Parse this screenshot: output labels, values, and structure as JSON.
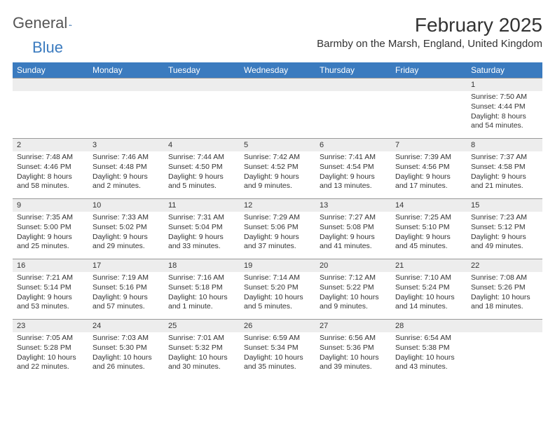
{
  "brand": {
    "name1": "General",
    "name2": "Blue"
  },
  "title": "February 2025",
  "location": "Barmby on the Marsh, England, United Kingdom",
  "colors": {
    "header_bg": "#3b7bbf",
    "header_fg": "#ffffff",
    "daynum_bg": "#ededed",
    "border": "#999999",
    "text": "#333333",
    "page_bg": "#ffffff"
  },
  "typography": {
    "title_fontsize": 28,
    "location_fontsize": 15,
    "th_fontsize": 12,
    "cell_fontsize": 10.5
  },
  "columns": [
    "Sunday",
    "Monday",
    "Tuesday",
    "Wednesday",
    "Thursday",
    "Friday",
    "Saturday"
  ],
  "weeks": [
    [
      null,
      null,
      null,
      null,
      null,
      null,
      {
        "n": "1",
        "sr": "Sunrise: 7:50 AM",
        "ss": "Sunset: 4:44 PM",
        "dl": "Daylight: 8 hours and 54 minutes."
      }
    ],
    [
      {
        "n": "2",
        "sr": "Sunrise: 7:48 AM",
        "ss": "Sunset: 4:46 PM",
        "dl": "Daylight: 8 hours and 58 minutes."
      },
      {
        "n": "3",
        "sr": "Sunrise: 7:46 AM",
        "ss": "Sunset: 4:48 PM",
        "dl": "Daylight: 9 hours and 2 minutes."
      },
      {
        "n": "4",
        "sr": "Sunrise: 7:44 AM",
        "ss": "Sunset: 4:50 PM",
        "dl": "Daylight: 9 hours and 5 minutes."
      },
      {
        "n": "5",
        "sr": "Sunrise: 7:42 AM",
        "ss": "Sunset: 4:52 PM",
        "dl": "Daylight: 9 hours and 9 minutes."
      },
      {
        "n": "6",
        "sr": "Sunrise: 7:41 AM",
        "ss": "Sunset: 4:54 PM",
        "dl": "Daylight: 9 hours and 13 minutes."
      },
      {
        "n": "7",
        "sr": "Sunrise: 7:39 AM",
        "ss": "Sunset: 4:56 PM",
        "dl": "Daylight: 9 hours and 17 minutes."
      },
      {
        "n": "8",
        "sr": "Sunrise: 7:37 AM",
        "ss": "Sunset: 4:58 PM",
        "dl": "Daylight: 9 hours and 21 minutes."
      }
    ],
    [
      {
        "n": "9",
        "sr": "Sunrise: 7:35 AM",
        "ss": "Sunset: 5:00 PM",
        "dl": "Daylight: 9 hours and 25 minutes."
      },
      {
        "n": "10",
        "sr": "Sunrise: 7:33 AM",
        "ss": "Sunset: 5:02 PM",
        "dl": "Daylight: 9 hours and 29 minutes."
      },
      {
        "n": "11",
        "sr": "Sunrise: 7:31 AM",
        "ss": "Sunset: 5:04 PM",
        "dl": "Daylight: 9 hours and 33 minutes."
      },
      {
        "n": "12",
        "sr": "Sunrise: 7:29 AM",
        "ss": "Sunset: 5:06 PM",
        "dl": "Daylight: 9 hours and 37 minutes."
      },
      {
        "n": "13",
        "sr": "Sunrise: 7:27 AM",
        "ss": "Sunset: 5:08 PM",
        "dl": "Daylight: 9 hours and 41 minutes."
      },
      {
        "n": "14",
        "sr": "Sunrise: 7:25 AM",
        "ss": "Sunset: 5:10 PM",
        "dl": "Daylight: 9 hours and 45 minutes."
      },
      {
        "n": "15",
        "sr": "Sunrise: 7:23 AM",
        "ss": "Sunset: 5:12 PM",
        "dl": "Daylight: 9 hours and 49 minutes."
      }
    ],
    [
      {
        "n": "16",
        "sr": "Sunrise: 7:21 AM",
        "ss": "Sunset: 5:14 PM",
        "dl": "Daylight: 9 hours and 53 minutes."
      },
      {
        "n": "17",
        "sr": "Sunrise: 7:19 AM",
        "ss": "Sunset: 5:16 PM",
        "dl": "Daylight: 9 hours and 57 minutes."
      },
      {
        "n": "18",
        "sr": "Sunrise: 7:16 AM",
        "ss": "Sunset: 5:18 PM",
        "dl": "Daylight: 10 hours and 1 minute."
      },
      {
        "n": "19",
        "sr": "Sunrise: 7:14 AM",
        "ss": "Sunset: 5:20 PM",
        "dl": "Daylight: 10 hours and 5 minutes."
      },
      {
        "n": "20",
        "sr": "Sunrise: 7:12 AM",
        "ss": "Sunset: 5:22 PM",
        "dl": "Daylight: 10 hours and 9 minutes."
      },
      {
        "n": "21",
        "sr": "Sunrise: 7:10 AM",
        "ss": "Sunset: 5:24 PM",
        "dl": "Daylight: 10 hours and 14 minutes."
      },
      {
        "n": "22",
        "sr": "Sunrise: 7:08 AM",
        "ss": "Sunset: 5:26 PM",
        "dl": "Daylight: 10 hours and 18 minutes."
      }
    ],
    [
      {
        "n": "23",
        "sr": "Sunrise: 7:05 AM",
        "ss": "Sunset: 5:28 PM",
        "dl": "Daylight: 10 hours and 22 minutes."
      },
      {
        "n": "24",
        "sr": "Sunrise: 7:03 AM",
        "ss": "Sunset: 5:30 PM",
        "dl": "Daylight: 10 hours and 26 minutes."
      },
      {
        "n": "25",
        "sr": "Sunrise: 7:01 AM",
        "ss": "Sunset: 5:32 PM",
        "dl": "Daylight: 10 hours and 30 minutes."
      },
      {
        "n": "26",
        "sr": "Sunrise: 6:59 AM",
        "ss": "Sunset: 5:34 PM",
        "dl": "Daylight: 10 hours and 35 minutes."
      },
      {
        "n": "27",
        "sr": "Sunrise: 6:56 AM",
        "ss": "Sunset: 5:36 PM",
        "dl": "Daylight: 10 hours and 39 minutes."
      },
      {
        "n": "28",
        "sr": "Sunrise: 6:54 AM",
        "ss": "Sunset: 5:38 PM",
        "dl": "Daylight: 10 hours and 43 minutes."
      },
      null
    ]
  ]
}
